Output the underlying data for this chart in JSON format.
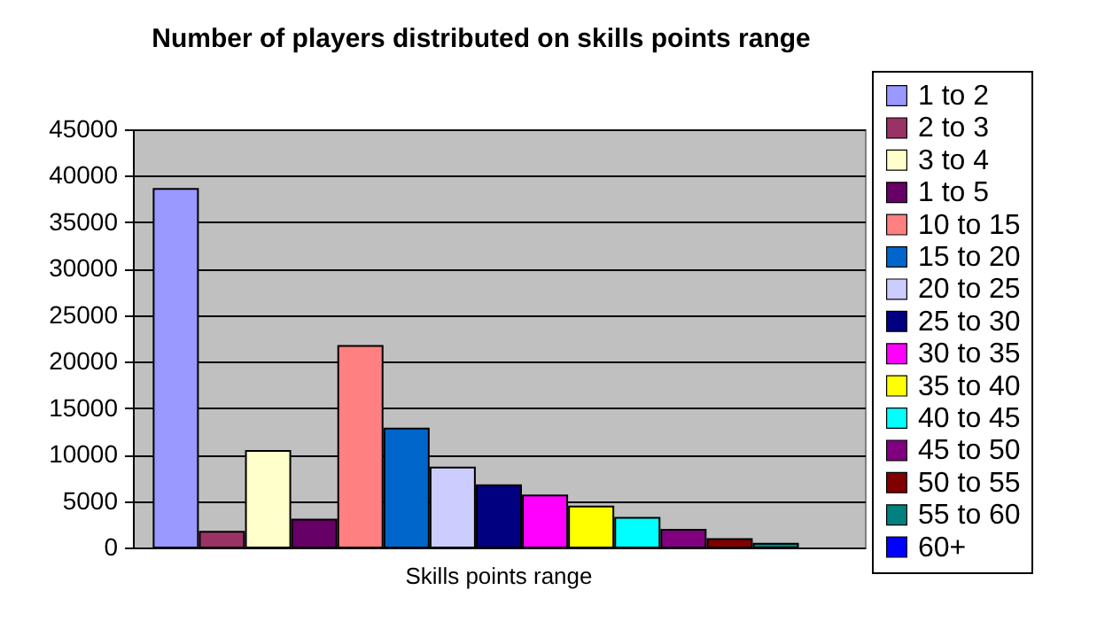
{
  "chart_data": {
    "type": "bar",
    "title": "Number of players distributed on skills points range",
    "categories": [
      "Skills points range"
    ],
    "series": [
      {
        "name": "1 to 2",
        "color": "#9999ff",
        "values": [
          38600
        ]
      },
      {
        "name": "2 to 3",
        "color": "#993366",
        "values": [
          1700
        ]
      },
      {
        "name": "3 to 4",
        "color": "#ffffcc",
        "values": [
          10400
        ]
      },
      {
        "name": "1 to 5",
        "color": "#660066",
        "values": [
          3000
        ]
      },
      {
        "name": "10 to 15",
        "color": "#ff8080",
        "values": [
          21700
        ]
      },
      {
        "name": "15 to 20",
        "color": "#0066cc",
        "values": [
          12800
        ]
      },
      {
        "name": "20 to 25",
        "color": "#ccccff",
        "values": [
          8600
        ]
      },
      {
        "name": "25 to 30",
        "color": "#000080",
        "values": [
          6700
        ]
      },
      {
        "name": "30 to 35",
        "color": "#ff00ff",
        "values": [
          5600
        ]
      },
      {
        "name": "35 to 40",
        "color": "#ffff00",
        "values": [
          4400
        ]
      },
      {
        "name": "40 to 45",
        "color": "#00ffff",
        "values": [
          3200
        ]
      },
      {
        "name": "45 to 50",
        "color": "#800080",
        "values": [
          1900
        ]
      },
      {
        "name": "50 to 55",
        "color": "#800000",
        "values": [
          900
        ]
      },
      {
        "name": "55 to 60",
        "color": "#008080",
        "values": [
          400
        ]
      },
      {
        "name": "60+",
        "color": "#0000ff",
        "values": [
          0
        ]
      }
    ],
    "ylim": [
      0,
      45000
    ],
    "yticks": [
      0,
      5000,
      10000,
      15000,
      20000,
      25000,
      30000,
      35000,
      40000,
      45000
    ],
    "grid": "y",
    "legend": "right"
  }
}
